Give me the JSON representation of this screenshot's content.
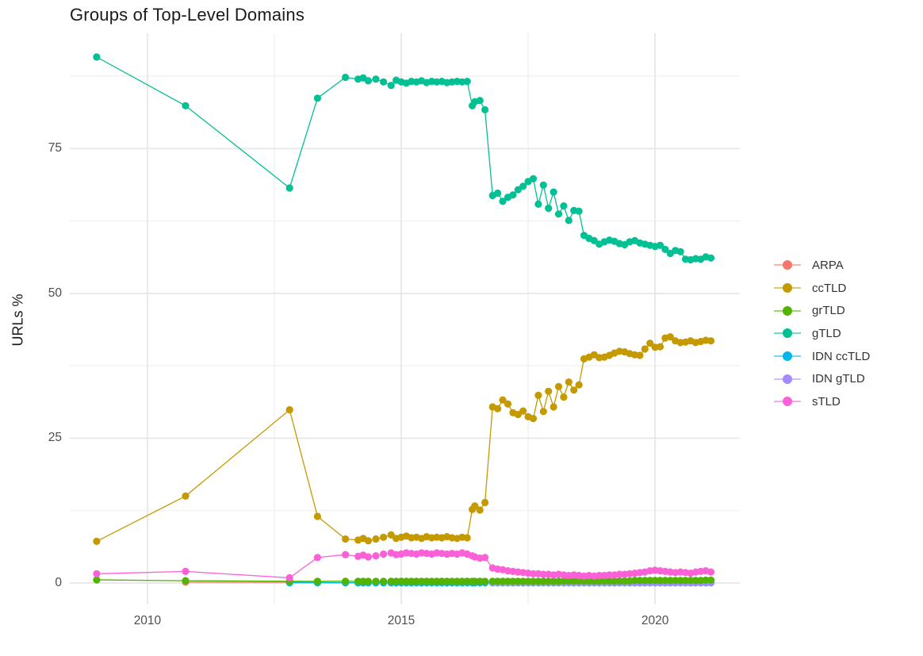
{
  "title": "Groups of Top-Level Domains",
  "axes": {
    "y_title": "URLs %",
    "y_ticks": [
      0,
      25,
      50,
      75
    ],
    "y_minor": [
      12.5,
      37.5,
      62.5,
      87.5
    ],
    "x_ticks": [
      2010,
      2015,
      2020
    ],
    "x_minor": [
      2012.5,
      2017.5
    ]
  },
  "chart_data": {
    "type": "line",
    "title": "Groups of Top-Level Domains",
    "xlabel": "",
    "ylabel": "URLs %",
    "xlim": [
      2008.47,
      2021.67
    ],
    "ylim": [
      -3.7,
      94.9
    ],
    "grid": true,
    "legend_position": "right",
    "marker_radius": 4.6,
    "layer_order": [
      "ARPA",
      "IDN ccTLD",
      "IDN gTLD",
      "grTLD",
      "ccTLD",
      "gTLD",
      "sTLD"
    ],
    "x": [
      2009.0,
      2010.75,
      2012.8,
      2013.35,
      2013.9,
      2014.15,
      2014.25,
      2014.35,
      2014.5,
      2014.65,
      2014.8,
      2014.9,
      2015.0,
      2015.1,
      2015.2,
      2015.3,
      2015.4,
      2015.5,
      2015.6,
      2015.7,
      2015.8,
      2015.9,
      2016.0,
      2016.1,
      2016.2,
      2016.3,
      2016.4,
      2016.45,
      2016.55,
      2016.65,
      2016.8,
      2016.9,
      2017.0,
      2017.1,
      2017.2,
      2017.3,
      2017.4,
      2017.5,
      2017.6,
      2017.7,
      2017.8,
      2017.9,
      2018.0,
      2018.1,
      2018.2,
      2018.3,
      2018.4,
      2018.5,
      2018.6,
      2018.7,
      2018.8,
      2018.9,
      2019.0,
      2019.1,
      2019.2,
      2019.3,
      2019.4,
      2019.5,
      2019.6,
      2019.7,
      2019.8,
      2019.9,
      2020.0,
      2020.1,
      2020.2,
      2020.3,
      2020.4,
      2020.5,
      2020.6,
      2020.7,
      2020.8,
      2020.9,
      2021.0,
      2021.1
    ],
    "series": [
      {
        "name": "ARPA",
        "color": "#F8766D",
        "values": [
          null,
          0.15,
          0.12,
          0.1,
          0.05,
          0.05,
          0.05,
          0.05,
          0.05,
          0.05,
          0.05,
          0.05,
          0.05,
          0.05,
          0.05,
          0.05,
          0.05,
          0.05,
          0.05,
          0.05,
          0.05,
          0.05,
          0.05,
          0.05,
          0.05,
          0.05,
          0.05,
          0.05,
          0.05,
          0.05,
          0.05,
          0.05,
          0.05,
          0.05,
          0.05,
          0.05,
          0.05,
          0.05,
          0.05,
          0.05,
          0.05,
          0.05,
          0.05,
          0.05,
          0.05,
          0.05,
          0.05,
          0.05,
          0.05,
          0.05,
          0.05,
          0.05,
          0.05,
          0.05,
          0.05,
          0.05,
          0.05,
          0.05,
          0.05,
          0.05,
          0.05,
          0.05,
          0.05,
          0.05,
          0.05,
          0.05,
          0.05,
          0.05,
          0.05,
          0.05,
          0.05,
          0.05,
          0.05,
          0.05
        ]
      },
      {
        "name": "ccTLD",
        "color": "#C49A00",
        "values": [
          7.2,
          15.0,
          29.9,
          11.5,
          7.6,
          7.4,
          7.7,
          7.3,
          7.6,
          7.9,
          8.3,
          7.7,
          7.9,
          8.1,
          7.8,
          7.9,
          7.7,
          8.0,
          7.8,
          7.9,
          7.8,
          8.0,
          7.8,
          7.7,
          7.9,
          7.8,
          12.7,
          13.3,
          12.6,
          13.9,
          30.4,
          30.1,
          31.6,
          30.9,
          29.4,
          29.1,
          29.7,
          28.7,
          28.4,
          32.4,
          29.6,
          33.1,
          30.4,
          33.9,
          32.1,
          34.7,
          33.3,
          34.2,
          38.7,
          39.0,
          39.4,
          38.9,
          39.0,
          39.3,
          39.7,
          40.0,
          39.9,
          39.6,
          39.4,
          39.3,
          40.4,
          41.4,
          40.7,
          40.8,
          42.3,
          42.5,
          41.8,
          41.5,
          41.6,
          41.8,
          41.5,
          41.7,
          41.9,
          41.8
        ]
      },
      {
        "name": "grTLD",
        "color": "#53B400",
        "values": [
          0.55,
          0.4,
          0.3,
          0.3,
          0.3,
          0.3,
          0.3,
          0.3,
          0.3,
          0.3,
          0.3,
          0.3,
          0.3,
          0.3,
          0.3,
          0.3,
          0.3,
          0.3,
          0.3,
          0.3,
          0.3,
          0.3,
          0.3,
          0.3,
          0.3,
          0.3,
          0.3,
          0.3,
          0.3,
          0.3,
          0.3,
          0.3,
          0.3,
          0.3,
          0.3,
          0.3,
          0.3,
          0.3,
          0.3,
          0.3,
          0.3,
          0.3,
          0.3,
          0.3,
          0.35,
          0.35,
          0.35,
          0.35,
          0.35,
          0.35,
          0.35,
          0.35,
          0.35,
          0.35,
          0.35,
          0.35,
          0.35,
          0.35,
          0.45,
          0.45,
          0.45,
          0.45,
          0.45,
          0.45,
          0.45,
          0.45,
          0.45,
          0.45,
          0.45,
          0.45,
          0.45,
          0.45,
          0.5,
          0.5
        ]
      },
      {
        "name": "gTLD",
        "color": "#00C094",
        "values": [
          90.8,
          82.4,
          68.2,
          83.7,
          87.3,
          87.0,
          87.2,
          86.7,
          87.0,
          86.5,
          85.9,
          86.8,
          86.5,
          86.3,
          86.6,
          86.5,
          86.7,
          86.4,
          86.6,
          86.5,
          86.6,
          86.4,
          86.5,
          86.6,
          86.5,
          86.6,
          82.4,
          83.1,
          83.3,
          81.7,
          66.9,
          67.3,
          65.9,
          66.6,
          67.0,
          67.9,
          68.5,
          69.3,
          69.8,
          65.4,
          68.7,
          64.7,
          67.5,
          63.7,
          65.1,
          62.6,
          64.3,
          64.2,
          60.0,
          59.5,
          59.1,
          58.5,
          58.9,
          59.2,
          59.0,
          58.6,
          58.4,
          58.9,
          59.1,
          58.7,
          58.5,
          58.3,
          58.1,
          58.3,
          57.6,
          56.9,
          57.4,
          57.2,
          55.9,
          55.8,
          56.0,
          55.9,
          56.3,
          56.1
        ]
      },
      {
        "name": "IDN ccTLD",
        "color": "#00B6EB",
        "values": [
          null,
          null,
          0.05,
          0.05,
          0.05,
          0.05,
          0.05,
          0.05,
          0.05,
          0.05,
          0.05,
          0.05,
          0.05,
          0.05,
          0.05,
          0.05,
          0.05,
          0.05,
          0.05,
          0.05,
          0.05,
          0.05,
          0.05,
          0.05,
          0.05,
          0.05,
          0.05,
          0.05,
          0.05,
          0.05,
          0.05,
          0.05,
          0.05,
          0.05,
          0.05,
          0.05,
          0.05,
          0.05,
          0.05,
          0.05,
          0.05,
          0.05,
          0.05,
          0.05,
          0.05,
          0.05,
          0.05,
          0.05,
          0.05,
          0.05,
          0.05,
          0.05,
          0.05,
          0.05,
          0.05,
          0.05,
          0.05,
          0.05,
          0.05,
          0.05,
          0.05,
          0.05,
          0.05,
          0.05,
          0.05,
          0.05,
          0.05,
          0.05,
          0.05,
          0.05,
          0.05,
          0.05,
          0.05,
          0.05
        ]
      },
      {
        "name": "IDN gTLD",
        "color": "#A58AFF",
        "values": [
          null,
          null,
          null,
          null,
          null,
          null,
          null,
          null,
          null,
          null,
          null,
          null,
          null,
          null,
          null,
          null,
          null,
          null,
          null,
          null,
          null,
          null,
          null,
          null,
          null,
          null,
          null,
          null,
          null,
          null,
          0.08,
          0.08,
          0.08,
          0.08,
          0.08,
          0.08,
          0.08,
          0.08,
          0.08,
          0.08,
          0.08,
          0.08,
          0.08,
          0.08,
          0.08,
          0.08,
          0.08,
          0.08,
          0.08,
          0.08,
          0.08,
          0.08,
          0.08,
          0.08,
          0.08,
          0.08,
          0.08,
          0.08,
          0.08,
          0.08,
          0.08,
          0.08,
          0.08,
          0.08,
          0.08,
          0.08,
          0.08,
          0.08,
          0.08,
          0.08,
          0.08,
          0.08,
          0.08,
          0.08
        ]
      },
      {
        "name": "sTLD",
        "color": "#FB61D7",
        "values": [
          1.6,
          2.0,
          0.9,
          4.4,
          4.9,
          4.6,
          4.8,
          4.5,
          4.7,
          5.0,
          5.2,
          4.9,
          5.0,
          5.2,
          5.1,
          5.0,
          5.2,
          5.1,
          5.0,
          5.2,
          5.1,
          5.0,
          5.1,
          5.0,
          5.2,
          5.0,
          4.7,
          4.5,
          4.3,
          4.4,
          2.6,
          2.4,
          2.3,
          2.1,
          2.0,
          1.9,
          1.8,
          1.7,
          1.6,
          1.6,
          1.5,
          1.5,
          1.4,
          1.5,
          1.4,
          1.3,
          1.4,
          1.3,
          1.2,
          1.3,
          1.2,
          1.3,
          1.3,
          1.4,
          1.4,
          1.5,
          1.5,
          1.6,
          1.7,
          1.8,
          1.9,
          2.1,
          2.2,
          2.1,
          2.0,
          1.9,
          1.8,
          1.9,
          1.8,
          1.7,
          1.9,
          2.0,
          2.1,
          1.9
        ]
      }
    ]
  },
  "legend": {
    "items": [
      {
        "label": "ARPA",
        "color": "#F8766D"
      },
      {
        "label": "ccTLD",
        "color": "#C49A00"
      },
      {
        "label": "grTLD",
        "color": "#53B400"
      },
      {
        "label": "gTLD",
        "color": "#00C094"
      },
      {
        "label": "IDN ccTLD",
        "color": "#00B6EB"
      },
      {
        "label": "IDN gTLD",
        "color": "#A58AFF"
      },
      {
        "label": "sTLD",
        "color": "#FB61D7"
      }
    ]
  },
  "colors": {
    "major_grid": "#e6e6e6",
    "minor_grid": "#efefef",
    "tick_text": "#4e4e4e",
    "title_text": "#1b1b1b"
  }
}
